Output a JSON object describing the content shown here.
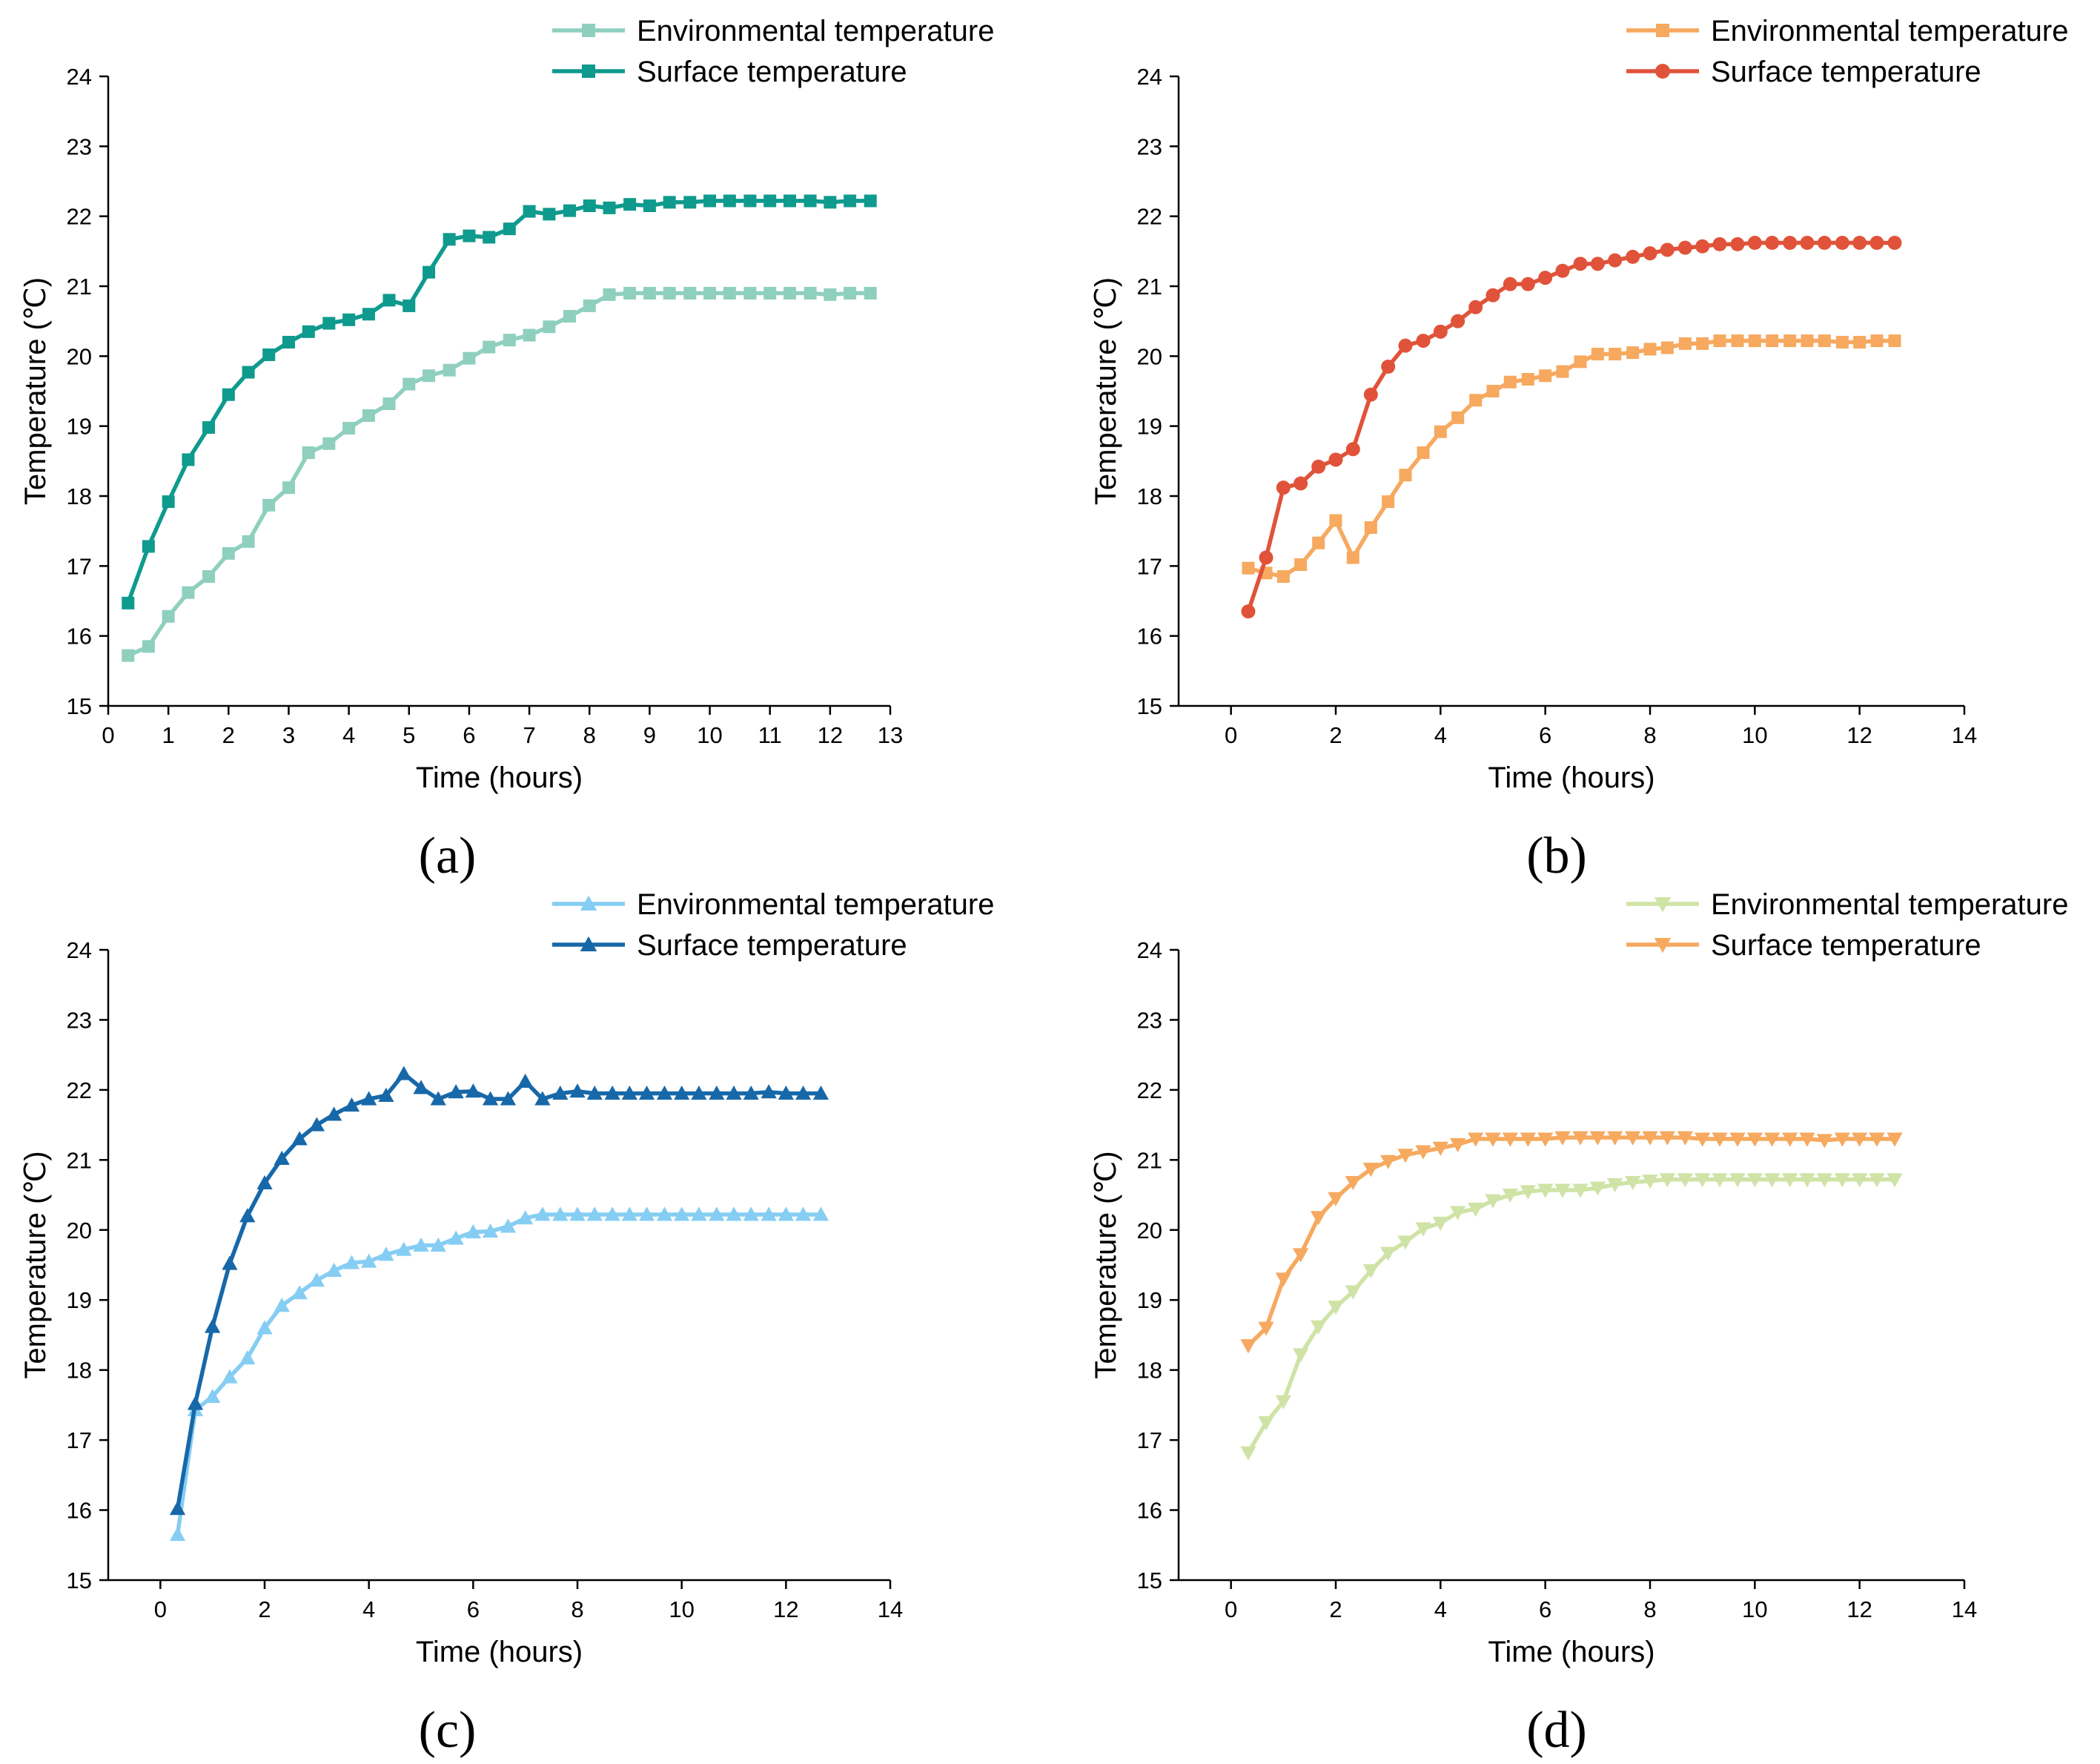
{
  "chart_data": [
    {
      "type": "line",
      "panel": "a",
      "panel_label": "(a)",
      "xlabel": "Time (hours)",
      "ylabel": "Temperature (℃)",
      "xlim": [
        0,
        13
      ],
      "ylim": [
        15,
        24
      ],
      "xticks": [
        0,
        1,
        2,
        3,
        4,
        5,
        6,
        7,
        8,
        9,
        10,
        11,
        12,
        13
      ],
      "yticks": [
        15,
        16,
        17,
        18,
        19,
        20,
        21,
        22,
        23,
        24
      ],
      "legend_position": "top-right",
      "series": [
        {
          "name": "Environmental temperature",
          "color": "#8fcfbe",
          "marker": "square",
          "x": [
            0.33,
            0.67,
            1,
            1.33,
            1.67,
            2,
            2.33,
            2.67,
            3,
            3.33,
            3.67,
            4,
            4.33,
            4.67,
            5,
            5.33,
            5.67,
            6,
            6.33,
            6.67,
            7,
            7.33,
            7.67,
            8,
            8.33,
            8.67,
            9,
            9.33,
            9.67,
            10,
            10.33,
            10.67,
            11,
            11.33,
            11.67,
            12,
            12.33,
            12.67
          ],
          "y": [
            15.72,
            15.85,
            16.28,
            16.62,
            16.85,
            17.18,
            17.35,
            17.87,
            18.12,
            18.62,
            18.75,
            18.97,
            19.15,
            19.32,
            19.6,
            19.72,
            19.8,
            19.97,
            20.13,
            20.23,
            20.3,
            20.42,
            20.57,
            20.72,
            20.88,
            20.9,
            20.9,
            20.9,
            20.9,
            20.9,
            20.9,
            20.9,
            20.9,
            20.9,
            20.9,
            20.88,
            20.9,
            20.9
          ]
        },
        {
          "name": "Surface temperature",
          "color": "#0f9a8e",
          "marker": "square",
          "x": [
            0.33,
            0.67,
            1,
            1.33,
            1.67,
            2,
            2.33,
            2.67,
            3,
            3.33,
            3.67,
            4,
            4.33,
            4.67,
            5,
            5.33,
            5.67,
            6,
            6.33,
            6.67,
            7,
            7.33,
            7.67,
            8,
            8.33,
            8.67,
            9,
            9.33,
            9.67,
            10,
            10.33,
            10.67,
            11,
            11.33,
            11.67,
            12,
            12.33,
            12.67
          ],
          "y": [
            16.47,
            17.28,
            17.92,
            18.52,
            18.98,
            19.45,
            19.77,
            20.02,
            20.2,
            20.35,
            20.47,
            20.52,
            20.6,
            20.8,
            20.72,
            21.2,
            21.67,
            21.72,
            21.7,
            21.82,
            22.07,
            22.03,
            22.08,
            22.15,
            22.12,
            22.17,
            22.15,
            22.2,
            22.2,
            22.22,
            22.22,
            22.22,
            22.22,
            22.22,
            22.22,
            22.2,
            22.22,
            22.22
          ]
        }
      ]
    },
    {
      "type": "line",
      "panel": "b",
      "panel_label": "(b)",
      "xlabel": "Time (hours)",
      "ylabel": "Temperature (℃)",
      "xlim": [
        -1,
        14
      ],
      "ylim": [
        15,
        24
      ],
      "xticks": [
        0,
        2,
        4,
        6,
        8,
        10,
        12,
        14
      ],
      "yticks": [
        15,
        16,
        17,
        18,
        19,
        20,
        21,
        22,
        23,
        24
      ],
      "legend_position": "top-right",
      "series": [
        {
          "name": "Environmental temperature",
          "color": "#f6a95f",
          "marker": "square",
          "x": [
            0.33,
            0.67,
            1,
            1.33,
            1.67,
            2,
            2.33,
            2.67,
            3,
            3.33,
            3.67,
            4,
            4.33,
            4.67,
            5,
            5.33,
            5.67,
            6,
            6.33,
            6.67,
            7,
            7.33,
            7.67,
            8,
            8.33,
            8.67,
            9,
            9.33,
            9.67,
            10,
            10.33,
            10.67,
            11,
            11.33,
            11.67,
            12,
            12.33,
            12.67
          ],
          "y": [
            16.97,
            16.9,
            16.85,
            17.02,
            17.33,
            17.65,
            17.12,
            17.55,
            17.92,
            18.3,
            18.62,
            18.92,
            19.12,
            19.37,
            19.5,
            19.63,
            19.67,
            19.72,
            19.78,
            19.92,
            20.03,
            20.03,
            20.05,
            20.1,
            20.12,
            20.18,
            20.18,
            20.22,
            20.22,
            20.22,
            20.22,
            20.22,
            20.22,
            20.22,
            20.2,
            20.2,
            20.22,
            20.22
          ]
        },
        {
          "name": "Surface temperature",
          "color": "#e0533a",
          "marker": "circle",
          "x": [
            0.33,
            0.67,
            1,
            1.33,
            1.67,
            2,
            2.33,
            2.67,
            3,
            3.33,
            3.67,
            4,
            4.33,
            4.67,
            5,
            5.33,
            5.67,
            6,
            6.33,
            6.67,
            7,
            7.33,
            7.67,
            8,
            8.33,
            8.67,
            9,
            9.33,
            9.67,
            10,
            10.33,
            10.67,
            11,
            11.33,
            11.67,
            12,
            12.33,
            12.67
          ],
          "y": [
            16.35,
            17.12,
            18.12,
            18.18,
            18.42,
            18.52,
            18.67,
            19.45,
            19.85,
            20.15,
            20.22,
            20.35,
            20.5,
            20.7,
            20.87,
            21.03,
            21.03,
            21.12,
            21.22,
            21.32,
            21.32,
            21.37,
            21.42,
            21.47,
            21.52,
            21.55,
            21.57,
            21.6,
            21.6,
            21.62,
            21.62,
            21.62,
            21.62,
            21.62,
            21.62,
            21.62,
            21.62,
            21.62
          ]
        }
      ]
    },
    {
      "type": "line",
      "panel": "c",
      "panel_label": "(c)",
      "xlabel": "Time (hours)",
      "ylabel": "Temperature (℃)",
      "xlim": [
        -1,
        14
      ],
      "ylim": [
        15,
        24
      ],
      "xticks": [
        0,
        2,
        4,
        6,
        8,
        10,
        12,
        14
      ],
      "yticks": [
        15,
        16,
        17,
        18,
        19,
        20,
        21,
        22,
        23,
        24
      ],
      "legend_position": "top-right",
      "series": [
        {
          "name": "Environmental temperature",
          "color": "#86cdf3",
          "marker": "triangle-up",
          "x": [
            0.33,
            0.67,
            1,
            1.33,
            1.67,
            2,
            2.33,
            2.67,
            3,
            3.33,
            3.67,
            4,
            4.33,
            4.67,
            5,
            5.33,
            5.67,
            6,
            6.33,
            6.67,
            7,
            7.33,
            7.67,
            8,
            8.33,
            8.67,
            9,
            9.33,
            9.67,
            10,
            10.33,
            10.67,
            11,
            11.33,
            11.67,
            12,
            12.33,
            12.67
          ],
          "y": [
            15.65,
            17.43,
            17.62,
            17.9,
            18.17,
            18.6,
            18.92,
            19.1,
            19.28,
            19.42,
            19.53,
            19.55,
            19.65,
            19.72,
            19.78,
            19.78,
            19.88,
            19.97,
            19.98,
            20.05,
            20.17,
            20.22,
            20.22,
            20.22,
            20.22,
            20.22,
            20.22,
            20.22,
            20.22,
            20.22,
            20.22,
            20.22,
            20.22,
            20.22,
            20.22,
            20.22,
            20.22,
            20.22
          ]
        },
        {
          "name": "Surface temperature",
          "color": "#1768a9",
          "marker": "triangle-up",
          "x": [
            0.33,
            0.67,
            1,
            1.33,
            1.67,
            2,
            2.33,
            2.67,
            3,
            3.33,
            3.67,
            4,
            4.33,
            4.67,
            5,
            5.33,
            5.67,
            6,
            6.33,
            6.67,
            7,
            7.33,
            7.67,
            8,
            8.33,
            8.67,
            9,
            9.33,
            9.67,
            10,
            10.33,
            10.67,
            11,
            11.33,
            11.67,
            12,
            12.33,
            12.67
          ],
          "y": [
            16.02,
            17.52,
            18.62,
            19.52,
            20.2,
            20.67,
            21.02,
            21.3,
            21.5,
            21.65,
            21.78,
            21.87,
            21.92,
            22.23,
            22.03,
            21.87,
            21.97,
            21.98,
            21.87,
            21.87,
            22.12,
            21.87,
            21.95,
            21.98,
            21.95,
            21.95,
            21.95,
            21.95,
            21.95,
            21.95,
            21.95,
            21.95,
            21.95,
            21.95,
            21.97,
            21.95,
            21.95,
            21.95
          ]
        }
      ]
    },
    {
      "type": "line",
      "panel": "d",
      "panel_label": "(d)",
      "xlabel": "Time (hours)",
      "ylabel": "Temperature (℃)",
      "xlim": [
        -1,
        14
      ],
      "ylim": [
        15,
        24
      ],
      "xticks": [
        0,
        2,
        4,
        6,
        8,
        10,
        12,
        14
      ],
      "yticks": [
        15,
        16,
        17,
        18,
        19,
        20,
        21,
        22,
        23,
        24
      ],
      "legend_position": "top-right",
      "series": [
        {
          "name": "Environmental temperature",
          "color": "#cfe3a6",
          "marker": "triangle-down",
          "x": [
            0.33,
            0.67,
            1,
            1.33,
            1.67,
            2,
            2.33,
            2.67,
            3,
            3.33,
            3.67,
            4,
            4.33,
            4.67,
            5,
            5.33,
            5.67,
            6,
            6.33,
            6.67,
            7,
            7.33,
            7.67,
            8,
            8.33,
            8.67,
            9,
            9.33,
            9.67,
            10,
            10.33,
            10.67,
            11,
            11.33,
            11.67,
            12,
            12.33,
            12.67
          ],
          "y": [
            16.82,
            17.25,
            17.55,
            18.22,
            18.62,
            18.9,
            19.12,
            19.42,
            19.67,
            19.83,
            20.02,
            20.1,
            20.25,
            20.3,
            20.42,
            20.5,
            20.55,
            20.57,
            20.57,
            20.57,
            20.6,
            20.65,
            20.68,
            20.7,
            20.72,
            20.72,
            20.72,
            20.72,
            20.72,
            20.72,
            20.72,
            20.72,
            20.72,
            20.72,
            20.72,
            20.72,
            20.72,
            20.72
          ]
        },
        {
          "name": "Surface temperature",
          "color": "#f6a95f",
          "marker": "triangle-down",
          "x": [
            0.33,
            0.67,
            1,
            1.33,
            1.67,
            2,
            2.33,
            2.67,
            3,
            3.33,
            3.67,
            4,
            4.33,
            4.67,
            5,
            5.33,
            5.67,
            6,
            6.33,
            6.67,
            7,
            7.33,
            7.67,
            8,
            8.33,
            8.67,
            9,
            9.33,
            9.67,
            10,
            10.33,
            10.67,
            11,
            11.33,
            11.67,
            12,
            12.33,
            12.67
          ],
          "y": [
            18.35,
            18.6,
            19.3,
            19.65,
            20.18,
            20.45,
            20.68,
            20.87,
            20.98,
            21.07,
            21.12,
            21.17,
            21.22,
            21.3,
            21.3,
            21.3,
            21.3,
            21.3,
            21.32,
            21.32,
            21.32,
            21.32,
            21.32,
            21.32,
            21.32,
            21.32,
            21.3,
            21.3,
            21.3,
            21.3,
            21.3,
            21.3,
            21.3,
            21.28,
            21.3,
            21.3,
            21.3,
            21.3
          ]
        }
      ]
    }
  ]
}
